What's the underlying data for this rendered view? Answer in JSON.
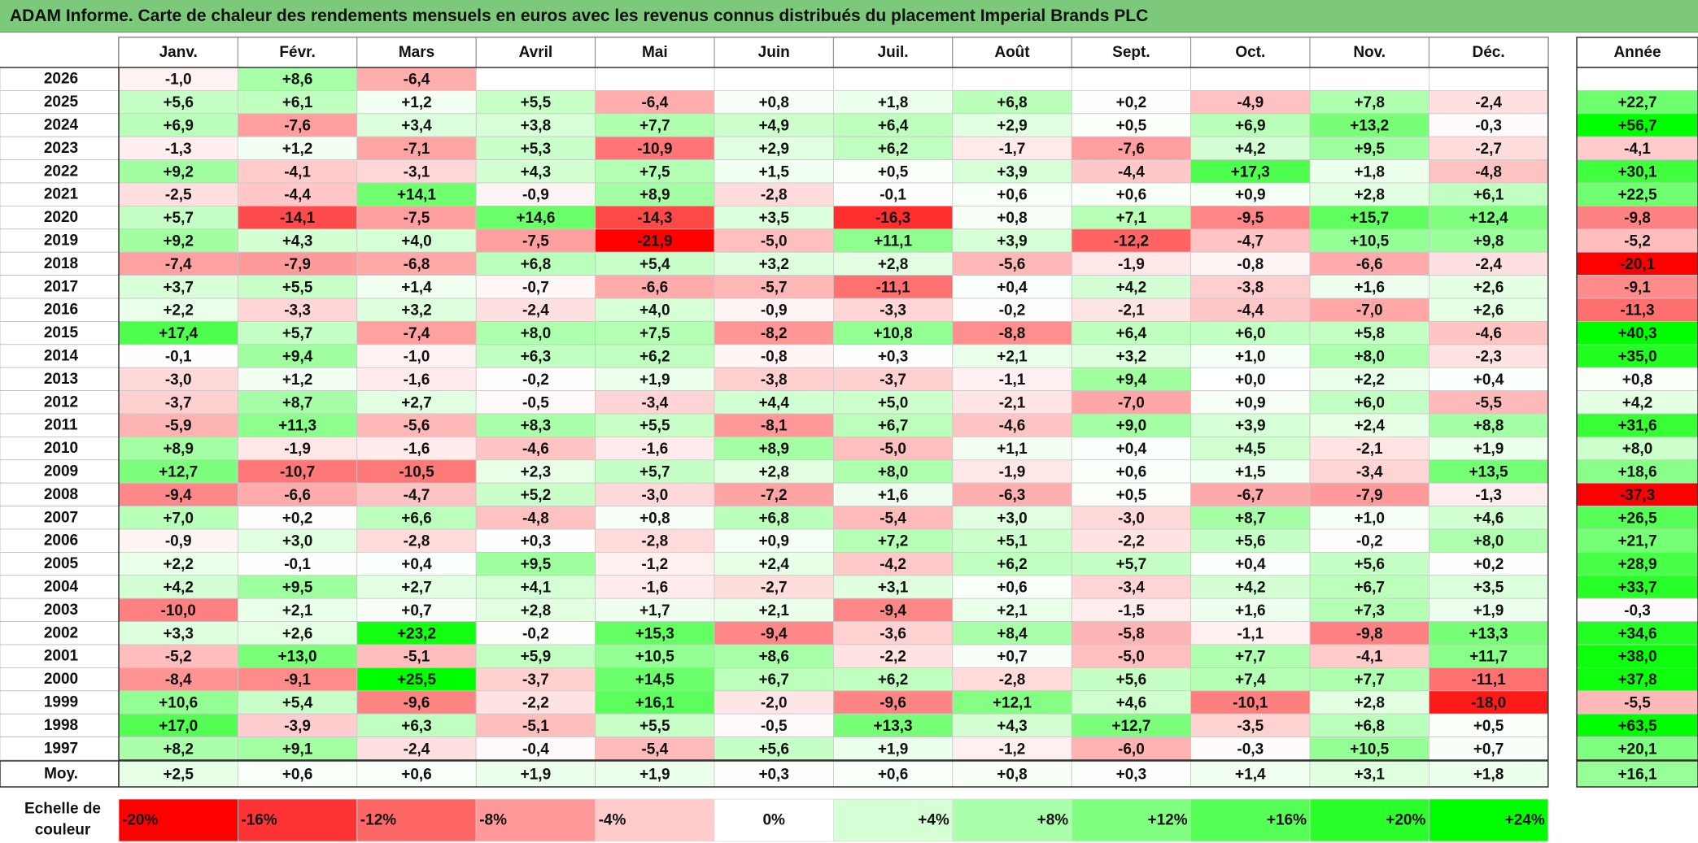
{
  "title": "ADAM Informe. Carte de chaleur des rendements mensuels en euros avec les revenus connus distribués du placement Imperial Brands PLC",
  "chart_data": {
    "type": "heatmap",
    "months": [
      "Janv.",
      "Févr.",
      "Mars",
      "Avril",
      "Mai",
      "Juin",
      "Juil.",
      "Août",
      "Sept.",
      "Oct.",
      "Nov.",
      "Déc."
    ],
    "year_header": "Année",
    "avg_label": "Moy.",
    "rows": [
      {
        "year": "2026",
        "values": [
          "-1,0",
          "+8,6",
          "-6,4",
          "",
          "",
          "",
          "",
          "",
          "",
          "",
          "",
          ""
        ],
        "annual": ""
      },
      {
        "year": "2025",
        "values": [
          "+5,6",
          "+6,1",
          "+1,2",
          "+5,5",
          "-6,4",
          "+0,8",
          "+1,8",
          "+6,8",
          "+0,2",
          "-4,9",
          "+7,8",
          "-2,4"
        ],
        "annual": "+22,7"
      },
      {
        "year": "2024",
        "values": [
          "+6,9",
          "-7,6",
          "+3,4",
          "+3,8",
          "+7,7",
          "+4,9",
          "+6,4",
          "+2,9",
          "+0,5",
          "+6,9",
          "+13,2",
          "-0,3"
        ],
        "annual": "+56,7"
      },
      {
        "year": "2023",
        "values": [
          "-1,3",
          "+1,2",
          "-7,1",
          "+5,3",
          "-10,9",
          "+2,9",
          "+6,2",
          "-1,7",
          "-7,6",
          "+4,2",
          "+9,5",
          "-2,7"
        ],
        "annual": "-4,1"
      },
      {
        "year": "2022",
        "values": [
          "+9,2",
          "-4,1",
          "-3,1",
          "+4,3",
          "+7,5",
          "+1,5",
          "+0,5",
          "+3,9",
          "-4,4",
          "+17,3",
          "+1,8",
          "-4,8"
        ],
        "annual": "+30,1"
      },
      {
        "year": "2021",
        "values": [
          "-2,5",
          "-4,4",
          "+14,1",
          "-0,9",
          "+8,9",
          "-2,8",
          "-0,1",
          "+0,6",
          "+0,6",
          "+0,9",
          "+2,8",
          "+6,1"
        ],
        "annual": "+22,5"
      },
      {
        "year": "2020",
        "values": [
          "+5,7",
          "-14,1",
          "-7,5",
          "+14,6",
          "-14,3",
          "+3,5",
          "-16,3",
          "+0,8",
          "+7,1",
          "-9,5",
          "+15,7",
          "+12,4"
        ],
        "annual": "-9,8"
      },
      {
        "year": "2019",
        "values": [
          "+9,2",
          "+4,3",
          "+4,0",
          "-7,5",
          "-21,9",
          "-5,0",
          "+11,1",
          "+3,9",
          "-12,2",
          "-4,7",
          "+10,5",
          "+9,8"
        ],
        "annual": "-5,2"
      },
      {
        "year": "2018",
        "values": [
          "-7,4",
          "-7,9",
          "-6,8",
          "+6,8",
          "+5,4",
          "+3,2",
          "+2,8",
          "-5,6",
          "-1,9",
          "-0,8",
          "-6,6",
          "-2,4"
        ],
        "annual": "-20,1"
      },
      {
        "year": "2017",
        "values": [
          "+3,7",
          "+5,5",
          "+1,4",
          "-0,7",
          "-6,6",
          "-5,7",
          "-11,1",
          "+0,4",
          "+4,2",
          "-3,8",
          "+1,6",
          "+2,6"
        ],
        "annual": "-9,1"
      },
      {
        "year": "2016",
        "values": [
          "+2,2",
          "-3,3",
          "+3,2",
          "-2,4",
          "+4,0",
          "-0,9",
          "-3,3",
          "-0,2",
          "-2,1",
          "-4,4",
          "-7,0",
          "+2,6"
        ],
        "annual": "-11,3"
      },
      {
        "year": "2015",
        "values": [
          "+17,4",
          "+5,7",
          "-7,4",
          "+8,0",
          "+7,5",
          "-8,2",
          "+10,8",
          "-8,8",
          "+6,4",
          "+6,0",
          "+5,8",
          "-4,6"
        ],
        "annual": "+40,3"
      },
      {
        "year": "2014",
        "values": [
          "-0,1",
          "+9,4",
          "-1,0",
          "+6,3",
          "+6,2",
          "-0,8",
          "+0,3",
          "+2,1",
          "+3,2",
          "+1,0",
          "+8,0",
          "-2,3"
        ],
        "annual": "+35,0"
      },
      {
        "year": "2013",
        "values": [
          "-3,0",
          "+1,2",
          "-1,6",
          "-0,2",
          "+1,9",
          "-3,8",
          "-3,7",
          "-1,1",
          "+9,4",
          "+0,0",
          "+2,2",
          "+0,4"
        ],
        "annual": "+0,8"
      },
      {
        "year": "2012",
        "values": [
          "-3,7",
          "+8,7",
          "+2,7",
          "-0,5",
          "-3,4",
          "+4,4",
          "+5,0",
          "-2,1",
          "-7,0",
          "+0,9",
          "+6,0",
          "-5,5"
        ],
        "annual": "+4,2"
      },
      {
        "year": "2011",
        "values": [
          "-5,9",
          "+11,3",
          "-5,6",
          "+8,3",
          "+5,5",
          "-8,1",
          "+6,7",
          "-4,6",
          "+9,0",
          "+3,9",
          "+2,4",
          "+8,8"
        ],
        "annual": "+31,6"
      },
      {
        "year": "2010",
        "values": [
          "+8,9",
          "-1,9",
          "-1,6",
          "-4,6",
          "-1,6",
          "+8,9",
          "-5,0",
          "+1,1",
          "+0,4",
          "+4,5",
          "-2,1",
          "+1,9"
        ],
        "annual": "+8,0"
      },
      {
        "year": "2009",
        "values": [
          "+12,7",
          "-10,7",
          "-10,5",
          "+2,3",
          "+5,7",
          "+2,8",
          "+8,0",
          "-1,9",
          "+0,6",
          "+1,5",
          "-3,4",
          "+13,5"
        ],
        "annual": "+18,6"
      },
      {
        "year": "2008",
        "values": [
          "-9,4",
          "-6,6",
          "-4,7",
          "+5,2",
          "-3,0",
          "-7,2",
          "+1,6",
          "-6,3",
          "+0,5",
          "-6,7",
          "-7,9",
          "-1,3"
        ],
        "annual": "-37,3"
      },
      {
        "year": "2007",
        "values": [
          "+7,0",
          "+0,2",
          "+6,6",
          "-4,8",
          "+0,8",
          "+6,8",
          "-5,4",
          "+3,0",
          "-3,0",
          "+8,7",
          "+1,0",
          "+4,6"
        ],
        "annual": "+26,5"
      },
      {
        "year": "2006",
        "values": [
          "-0,9",
          "+3,0",
          "-2,8",
          "+0,3",
          "-2,8",
          "+0,9",
          "+7,2",
          "+5,1",
          "-2,2",
          "+5,6",
          "-0,2",
          "+8,0"
        ],
        "annual": "+21,7"
      },
      {
        "year": "2005",
        "values": [
          "+2,2",
          "-0,1",
          "+0,4",
          "+9,5",
          "-1,2",
          "+2,4",
          "-4,2",
          "+6,2",
          "+5,7",
          "+0,4",
          "+5,6",
          "+0,2"
        ],
        "annual": "+28,9"
      },
      {
        "year": "2004",
        "values": [
          "+4,2",
          "+9,5",
          "+2,7",
          "+4,1",
          "-1,6",
          "-2,7",
          "+3,1",
          "+0,6",
          "-3,4",
          "+4,2",
          "+6,7",
          "+3,5"
        ],
        "annual": "+33,7"
      },
      {
        "year": "2003",
        "values": [
          "-10,0",
          "+2,1",
          "+0,7",
          "+2,8",
          "+1,7",
          "+2,1",
          "-9,4",
          "+2,1",
          "-1,5",
          "+1,6",
          "+7,3",
          "+1,9"
        ],
        "annual": "-0,3"
      },
      {
        "year": "2002",
        "values": [
          "+3,3",
          "+2,6",
          "+23,2",
          "-0,2",
          "+15,3",
          "-9,4",
          "-3,6",
          "+8,4",
          "-5,8",
          "-1,1",
          "-9,8",
          "+13,3"
        ],
        "annual": "+34,6"
      },
      {
        "year": "2001",
        "values": [
          "-5,2",
          "+13,0",
          "-5,1",
          "+5,9",
          "+10,5",
          "+8,6",
          "-2,2",
          "+0,7",
          "-5,0",
          "+7,7",
          "-4,1",
          "+11,7"
        ],
        "annual": "+38,0"
      },
      {
        "year": "2000",
        "values": [
          "-8,4",
          "-9,1",
          "+25,5",
          "-3,7",
          "+14,5",
          "+6,7",
          "+6,2",
          "-2,8",
          "+5,6",
          "+7,4",
          "+7,7",
          "-11,1"
        ],
        "annual": "+37,8"
      },
      {
        "year": "1999",
        "values": [
          "+10,6",
          "+5,4",
          "-9,6",
          "-2,2",
          "+16,1",
          "-2,0",
          "-9,6",
          "+12,1",
          "+4,6",
          "-10,1",
          "+2,8",
          "-18,0"
        ],
        "annual": "-5,5"
      },
      {
        "year": "1998",
        "values": [
          "+17,0",
          "-3,9",
          "+6,3",
          "-5,1",
          "+5,5",
          "-0,5",
          "+13,3",
          "+4,3",
          "+12,7",
          "-3,5",
          "+6,8",
          "+0,5"
        ],
        "annual": "+63,5"
      },
      {
        "year": "1997",
        "values": [
          "+8,2",
          "+9,1",
          "-2,4",
          "-0,4",
          "-5,4",
          "+5,6",
          "+1,9",
          "-1,2",
          "-6,0",
          "-0,3",
          "+10,5",
          "+0,7"
        ],
        "annual": "+20,1"
      }
    ],
    "averages": {
      "values": [
        "+2,5",
        "+0,6",
        "+0,6",
        "+1,9",
        "+1,9",
        "+0,3",
        "+0,6",
        "+0,8",
        "+0,3",
        "+1,4",
        "+3,1",
        "+1,8"
      ],
      "annual": "+16,1"
    },
    "scale": {
      "label_lines": [
        "Echelle de",
        "couleur"
      ],
      "steps": [
        {
          "label": "-20%",
          "value": -20
        },
        {
          "label": "-16%",
          "value": -16
        },
        {
          "label": "-12%",
          "value": -12
        },
        {
          "label": "-8%",
          "value": -8
        },
        {
          "label": "-4%",
          "value": -4
        },
        {
          "label": "0%",
          "value": 0
        },
        {
          "label": "+4%",
          "value": 4
        },
        {
          "label": "+8%",
          "value": 8
        },
        {
          "label": "+12%",
          "value": 12
        },
        {
          "label": "+16%",
          "value": 16
        },
        {
          "label": "+20%",
          "value": 20
        },
        {
          "label": "+24%",
          "value": 24
        }
      ]
    },
    "colors": {
      "negative_max": "#ff0000",
      "neutral": "#ffffff",
      "positive_max": "#00ff00",
      "title_bg": "#7dc97b"
    }
  }
}
